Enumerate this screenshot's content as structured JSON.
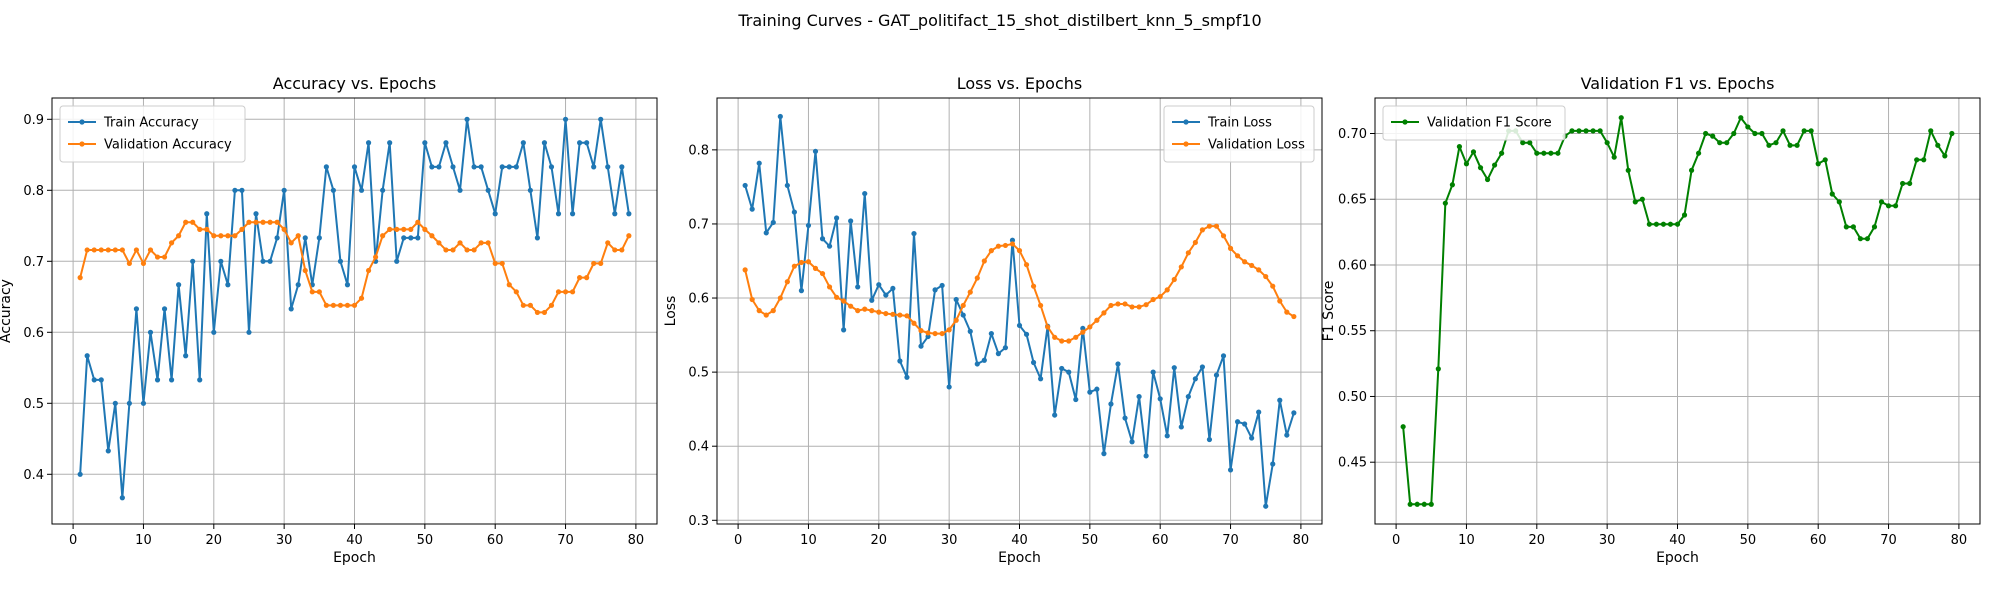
{
  "figure": {
    "suptitle": "Training Curves - GAT_politifact_15_shot_distilbert_knn_5_smpf10"
  },
  "colors": {
    "train": "#1f77b4",
    "validation": "#ff7f0e",
    "f1": "#008000",
    "grid": "#b0b0b0"
  },
  "chart_data": [
    {
      "type": "line",
      "title": "Accuracy vs. Epochs",
      "xlabel": "Epoch",
      "ylabel": "Accuracy",
      "xlim": [
        -3,
        83
      ],
      "ylim": [
        0.33,
        0.93
      ],
      "xticks": [
        0,
        10,
        20,
        30,
        40,
        50,
        60,
        70,
        80
      ],
      "yticks": [
        0.4,
        0.5,
        0.6,
        0.7,
        0.8,
        0.9
      ],
      "grid": true,
      "legend": "upper-left",
      "x": [
        1,
        2,
        3,
        4,
        5,
        6,
        7,
        8,
        9,
        10,
        11,
        12,
        13,
        14,
        15,
        16,
        17,
        18,
        19,
        20,
        21,
        22,
        23,
        24,
        25,
        26,
        27,
        28,
        29,
        30,
        31,
        32,
        33,
        34,
        35,
        36,
        37,
        38,
        39,
        40,
        41,
        42,
        43,
        44,
        45,
        46,
        47,
        48,
        49,
        50,
        51,
        52,
        53,
        54,
        55,
        56,
        57,
        58,
        59,
        60,
        61,
        62,
        63,
        64,
        65,
        66,
        67,
        68,
        69,
        70,
        71,
        72,
        73,
        74,
        75,
        76,
        77,
        78,
        79
      ],
      "series": [
        {
          "name": "Train Accuracy",
          "values": [
            0.4,
            0.567,
            0.533,
            0.533,
            0.433,
            0.5,
            0.367,
            0.5,
            0.633,
            0.5,
            0.6,
            0.533,
            0.633,
            0.533,
            0.667,
            0.567,
            0.7,
            0.533,
            0.767,
            0.6,
            0.7,
            0.667,
            0.8,
            0.8,
            0.6,
            0.767,
            0.7,
            0.7,
            0.733,
            0.8,
            0.633,
            0.667,
            0.733,
            0.667,
            0.733,
            0.833,
            0.8,
            0.7,
            0.667,
            0.833,
            0.8,
            0.867,
            0.7,
            0.8,
            0.867,
            0.7,
            0.733,
            0.733,
            0.733,
            0.867,
            0.833,
            0.833,
            0.867,
            0.833,
            0.8,
            0.9,
            0.833,
            0.833,
            0.8,
            0.767,
            0.833,
            0.833,
            0.833,
            0.867,
            0.8,
            0.733,
            0.867,
            0.833,
            0.767,
            0.9,
            0.767,
            0.867,
            0.867,
            0.833,
            0.9,
            0.833,
            0.767,
            0.833,
            0.767
          ]
        },
        {
          "name": "Validation Accuracy",
          "values": [
            0.677,
            0.716,
            0.716,
            0.716,
            0.716,
            0.716,
            0.716,
            0.697,
            0.716,
            0.697,
            0.716,
            0.706,
            0.706,
            0.726,
            0.736,
            0.755,
            0.755,
            0.745,
            0.745,
            0.736,
            0.736,
            0.736,
            0.736,
            0.745,
            0.755,
            0.755,
            0.755,
            0.755,
            0.755,
            0.745,
            0.726,
            0.736,
            0.687,
            0.657,
            0.657,
            0.638,
            0.638,
            0.638,
            0.638,
            0.638,
            0.648,
            0.687,
            0.706,
            0.736,
            0.745,
            0.745,
            0.745,
            0.745,
            0.755,
            0.745,
            0.736,
            0.726,
            0.716,
            0.716,
            0.726,
            0.716,
            0.716,
            0.726,
            0.726,
            0.697,
            0.697,
            0.667,
            0.657,
            0.638,
            0.638,
            0.628,
            0.628,
            0.638,
            0.657,
            0.657,
            0.657,
            0.677,
            0.677,
            0.697,
            0.697,
            0.726,
            0.716,
            0.716,
            0.736
          ]
        }
      ]
    },
    {
      "type": "line",
      "title": "Loss vs. Epochs",
      "xlabel": "Epoch",
      "ylabel": "Loss",
      "xlim": [
        -3,
        83
      ],
      "ylim": [
        0.295,
        0.87
      ],
      "xticks": [
        0,
        10,
        20,
        30,
        40,
        50,
        60,
        70,
        80
      ],
      "yticks": [
        0.3,
        0.4,
        0.5,
        0.6,
        0.7,
        0.8
      ],
      "grid": true,
      "legend": "upper-right",
      "x": [
        1,
        2,
        3,
        4,
        5,
        6,
        7,
        8,
        9,
        10,
        11,
        12,
        13,
        14,
        15,
        16,
        17,
        18,
        19,
        20,
        21,
        22,
        23,
        24,
        25,
        26,
        27,
        28,
        29,
        30,
        31,
        32,
        33,
        34,
        35,
        36,
        37,
        38,
        39,
        40,
        41,
        42,
        43,
        44,
        45,
        46,
        47,
        48,
        49,
        50,
        51,
        52,
        53,
        54,
        55,
        56,
        57,
        58,
        59,
        60,
        61,
        62,
        63,
        64,
        65,
        66,
        67,
        68,
        69,
        70,
        71,
        72,
        73,
        74,
        75,
        76,
        77,
        78,
        79
      ],
      "series": [
        {
          "name": "Train Loss",
          "values": [
            0.752,
            0.72,
            0.782,
            0.688,
            0.702,
            0.845,
            0.752,
            0.716,
            0.61,
            0.698,
            0.798,
            0.68,
            0.67,
            0.708,
            0.557,
            0.704,
            0.615,
            0.741,
            0.597,
            0.618,
            0.604,
            0.613,
            0.515,
            0.493,
            0.687,
            0.535,
            0.548,
            0.611,
            0.617,
            0.48,
            0.598,
            0.577,
            0.555,
            0.511,
            0.516,
            0.552,
            0.525,
            0.533,
            0.678,
            0.563,
            0.551,
            0.513,
            0.491,
            0.562,
            0.442,
            0.505,
            0.5,
            0.463,
            0.559,
            0.473,
            0.477,
            0.39,
            0.457,
            0.511,
            0.438,
            0.406,
            0.467,
            0.387,
            0.5,
            0.464,
            0.414,
            0.506,
            0.426,
            0.467,
            0.491,
            0.507,
            0.409,
            0.496,
            0.522,
            0.368,
            0.433,
            0.43,
            0.411,
            0.446,
            0.319,
            0.376,
            0.462,
            0.415,
            0.445
          ]
        },
        {
          "name": "Validation Loss",
          "values": [
            0.638,
            0.598,
            0.583,
            0.577,
            0.583,
            0.6,
            0.622,
            0.643,
            0.648,
            0.649,
            0.64,
            0.633,
            0.615,
            0.601,
            0.596,
            0.589,
            0.583,
            0.585,
            0.583,
            0.581,
            0.579,
            0.578,
            0.577,
            0.576,
            0.566,
            0.556,
            0.553,
            0.552,
            0.552,
            0.557,
            0.57,
            0.59,
            0.608,
            0.627,
            0.65,
            0.664,
            0.67,
            0.671,
            0.673,
            0.664,
            0.645,
            0.616,
            0.59,
            0.561,
            0.547,
            0.542,
            0.542,
            0.547,
            0.554,
            0.561,
            0.57,
            0.58,
            0.59,
            0.592,
            0.592,
            0.588,
            0.588,
            0.591,
            0.598,
            0.602,
            0.611,
            0.625,
            0.642,
            0.661,
            0.675,
            0.692,
            0.697,
            0.697,
            0.684,
            0.667,
            0.657,
            0.649,
            0.644,
            0.638,
            0.629,
            0.616,
            0.596,
            0.581,
            0.575
          ]
        }
      ]
    },
    {
      "type": "line",
      "title": "Validation F1 vs. Epochs",
      "xlabel": "Epoch",
      "ylabel": "F1 Score",
      "xlim": [
        -3,
        83
      ],
      "ylim": [
        0.403,
        0.727
      ],
      "xticks": [
        0,
        10,
        20,
        30,
        40,
        50,
        60,
        70,
        80
      ],
      "yticks": [
        0.45,
        0.5,
        0.55,
        0.6,
        0.65,
        0.7
      ],
      "grid": true,
      "legend": "upper-left",
      "x": [
        1,
        2,
        3,
        4,
        5,
        6,
        7,
        8,
        9,
        10,
        11,
        12,
        13,
        14,
        15,
        16,
        17,
        18,
        19,
        20,
        21,
        22,
        23,
        24,
        25,
        26,
        27,
        28,
        29,
        30,
        31,
        32,
        33,
        34,
        35,
        36,
        37,
        38,
        39,
        40,
        41,
        42,
        43,
        44,
        45,
        46,
        47,
        48,
        49,
        50,
        51,
        52,
        53,
        54,
        55,
        56,
        57,
        58,
        59,
        60,
        61,
        62,
        63,
        64,
        65,
        66,
        67,
        68,
        69,
        70,
        71,
        72,
        73,
        74,
        75,
        76,
        77,
        78,
        79
      ],
      "series": [
        {
          "name": "Validation F1 Score",
          "values": [
            0.477,
            0.418,
            0.418,
            0.418,
            0.418,
            0.521,
            0.647,
            0.661,
            0.69,
            0.677,
            0.686,
            0.674,
            0.665,
            0.676,
            0.685,
            0.702,
            0.702,
            0.693,
            0.693,
            0.685,
            0.685,
            0.685,
            0.685,
            0.698,
            0.702,
            0.702,
            0.702,
            0.702,
            0.702,
            0.693,
            0.682,
            0.712,
            0.672,
            0.648,
            0.65,
            0.631,
            0.631,
            0.631,
            0.631,
            0.631,
            0.638,
            0.672,
            0.685,
            0.7,
            0.698,
            0.693,
            0.693,
            0.7,
            0.712,
            0.705,
            0.7,
            0.7,
            0.691,
            0.693,
            0.702,
            0.691,
            0.691,
            0.702,
            0.702,
            0.677,
            0.68,
            0.654,
            0.648,
            0.629,
            0.629,
            0.62,
            0.62,
            0.629,
            0.648,
            0.645,
            0.645,
            0.662,
            0.662,
            0.68,
            0.68,
            0.702,
            0.691,
            0.683,
            0.7
          ]
        }
      ]
    }
  ]
}
